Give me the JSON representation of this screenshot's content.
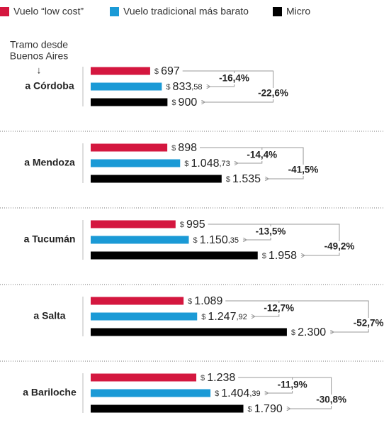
{
  "chart_data": {
    "type": "bar",
    "orientation": "horizontal",
    "intro": "Tramo desde",
    "intro2": "Buenos Aires",
    "intro_arrow": "↓",
    "categories": [
      "a Córdoba",
      "a Mendoza",
      "a Tucumán",
      "a Salta",
      "a Bariloche"
    ],
    "xlim": [
      0,
      2500
    ],
    "series": [
      {
        "name": "Vuelo “low cost”",
        "color": "#d4173f",
        "values": [
          697,
          898,
          995,
          1089,
          1238
        ],
        "value_labels": [
          "$ 697",
          "$ 898",
          "$ 995",
          "$ 1.089",
          "$ 1.238"
        ]
      },
      {
        "name": "Vuelo tradicional más barato",
        "color": "#1b9ad6",
        "values": [
          833.58,
          1048.73,
          1150.35,
          1247.92,
          1404.39
        ],
        "value_labels": [
          "$ 833,58",
          "$ 1.048,73",
          "$ 1.150,35",
          "$ 1.247,92",
          "$ 1.404,39"
        ]
      },
      {
        "name": "Micro",
        "color": "#000000",
        "values": [
          900,
          1535,
          1958,
          2300,
          1790
        ],
        "value_labels": [
          "$ 900",
          "$ 1.535",
          "$ 1.958",
          "$ 2.300",
          "$ 1.790"
        ]
      }
    ],
    "comparisons": [
      {
        "values": [
          -16.4,
          -14.4,
          -13.5,
          -12.7,
          -11.9
        ],
        "value_labels": [
          "-16,4%",
          "-14,4%",
          "-13,5%",
          "-12,7%",
          "-11,9%"
        ]
      },
      {
        "values": [
          -22.6,
          -41.5,
          -49.2,
          -52.7,
          -30.8
        ],
        "value_labels": [
          "-22,6%",
          "-41,5%",
          "-49,2%",
          "-52,7%",
          "-30,8%"
        ]
      }
    ]
  }
}
